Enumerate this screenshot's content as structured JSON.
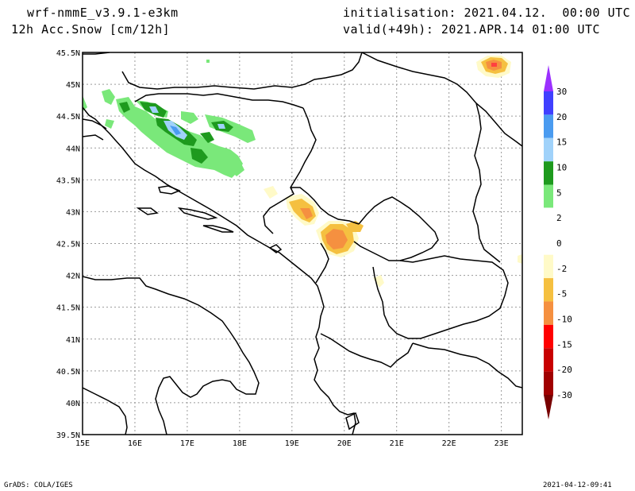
{
  "header": {
    "model": "wrf-nmmE_v3.9.1-e3km",
    "variable": "12h Acc.Snow [cm/12h]",
    "init": "initialisation: 2021.04.12.  00:00 UTC",
    "valid": "valid(+49h): 2021.APR.14 01:00 UTC"
  },
  "axes": {
    "lat_labels": [
      "45.5N",
      "45N",
      "44.5N",
      "44N",
      "43.5N",
      "43N",
      "42.5N",
      "42N",
      "41.5N",
      "41N",
      "40.5N",
      "40N",
      "39.5N"
    ],
    "lon_labels": [
      "15E",
      "16E",
      "17E",
      "18E",
      "19E",
      "20E",
      "21E",
      "22E",
      "23E"
    ]
  },
  "colorbar": {
    "bins": [
      {
        "color": "#9b30ff"
      },
      {
        "color": "#4040ff"
      },
      {
        "color": "#4a9bf0"
      },
      {
        "color": "#a0d2fa"
      },
      {
        "color": "#1e9a1e"
      },
      {
        "color": "#7ae87a"
      },
      {
        "color": "#ffffff"
      },
      {
        "color": "#ffffff"
      },
      {
        "color": "#fffac8"
      },
      {
        "color": "#f5c040"
      },
      {
        "color": "#f59040"
      },
      {
        "color": "#ff0000"
      },
      {
        "color": "#c80000"
      },
      {
        "color": "#a00000"
      },
      {
        "color": "#780000"
      }
    ],
    "labels": [
      "30",
      "20",
      "15",
      "10",
      "5",
      "2",
      "0",
      "-2",
      "-5",
      "-10",
      "-15",
      "-20",
      "-30"
    ]
  },
  "footer": {
    "left": "GrADS: COLA/IGES",
    "right": "2021-04-12-09:41"
  }
}
